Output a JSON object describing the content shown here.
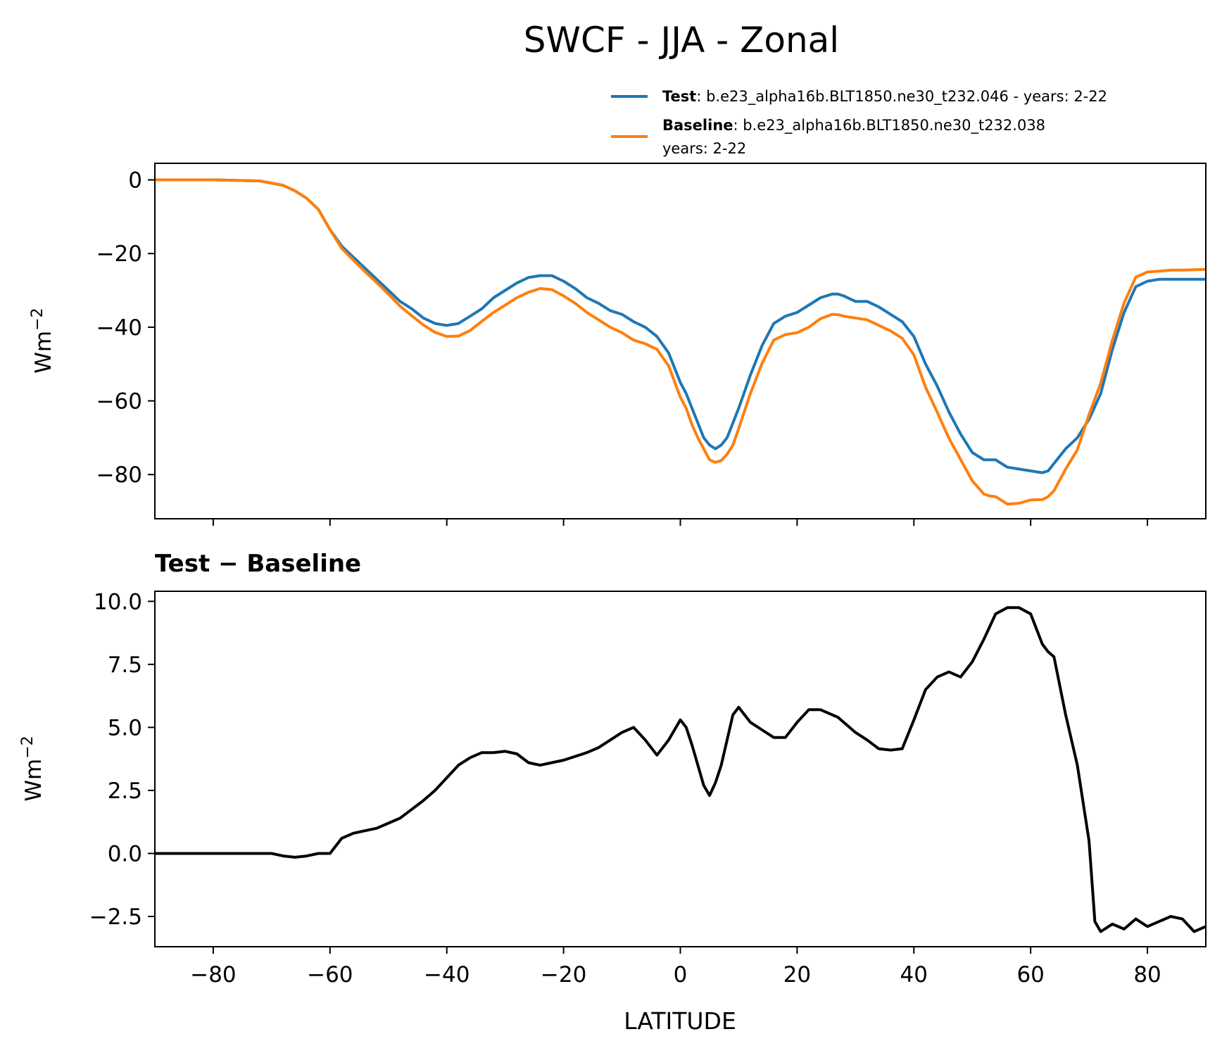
{
  "chart_data": [
    {
      "type": "line",
      "title": "SWCF - JJA - Zonal",
      "xlabel": "",
      "ylabel_base": "Wm",
      "ylabel_sup": "−2",
      "xlim": [
        -90,
        90
      ],
      "ylim": [
        -92,
        4.5
      ],
      "yticks": [
        0,
        -20,
        -40,
        -60,
        -80
      ],
      "ytick_labels": [
        "0",
        "−20",
        "−40",
        "−60",
        "−80"
      ],
      "legend": {
        "position": "upper-right-outside",
        "entries": [
          {
            "bold": "Test",
            "text": ": b.e23_alpha16b.BLT1850.ne30_t232.046 - years: 2-22",
            "text2": "",
            "color": "#1f77b4"
          },
          {
            "bold": "Baseline",
            "text": ": b.e23_alpha16b.BLT1850.ne30_t232.038",
            "text2": "years: 2-22",
            "color": "#ff7f0e"
          }
        ]
      },
      "series": [
        {
          "name": "Test",
          "color": "#1f77b4",
          "x": [
            -90,
            -80,
            -72,
            -68,
            -66,
            -64,
            -62,
            -60,
            -58,
            -56,
            -54,
            -52,
            -50,
            -48,
            -46,
            -44,
            -42,
            -40,
            -38,
            -36,
            -34,
            -32,
            -30,
            -28,
            -26,
            -24,
            -22,
            -20,
            -18,
            -16,
            -14,
            -12,
            -10,
            -8,
            -6,
            -4,
            -2,
            0,
            1,
            2,
            3,
            4,
            5,
            6,
            7,
            8,
            9,
            10,
            12,
            14,
            16,
            18,
            20,
            22,
            24,
            26,
            27,
            28,
            30,
            32,
            34,
            36,
            38,
            40,
            42,
            44,
            46,
            48,
            50,
            52,
            53,
            54,
            56,
            58,
            60,
            62,
            63,
            64,
            66,
            68,
            70,
            72,
            74,
            76,
            78,
            80,
            82,
            84,
            86,
            88,
            90
          ],
          "y": [
            0,
            0,
            -0.3,
            -1.5,
            -3,
            -5,
            -8,
            -13.5,
            -18,
            -21,
            -24,
            -27,
            -30,
            -33,
            -35,
            -37.5,
            -39,
            -39.5,
            -39,
            -37,
            -35,
            -32,
            -30,
            -28,
            -26.5,
            -26,
            -26,
            -27.5,
            -29.5,
            -32,
            -33.5,
            -35.5,
            -36.5,
            -38.5,
            -40,
            -42.5,
            -47,
            -55,
            -58,
            -62,
            -66,
            -70,
            -72,
            -73,
            -72,
            -70,
            -66,
            -62,
            -53,
            -45,
            -39,
            -37,
            -36,
            -34,
            -32,
            -31,
            -31,
            -31.5,
            -33,
            -33,
            -34.5,
            -36.5,
            -38.5,
            -42.5,
            -50,
            -56,
            -63,
            -69,
            -74,
            -76,
            -76,
            -76,
            -78,
            -78.5,
            -79,
            -79.5,
            -79,
            -77,
            -73,
            -70,
            -65,
            -58,
            -46,
            -36,
            -29,
            -27.5,
            -27,
            -27,
            -27,
            -27,
            -27
          ]
        },
        {
          "name": "Baseline",
          "color": "#ff7f0e",
          "x": [
            -90,
            -80,
            -72,
            -68,
            -66,
            -64,
            -62,
            -60,
            -58,
            -56,
            -54,
            -52,
            -50,
            -48,
            -46,
            -44,
            -42,
            -40,
            -38,
            -36,
            -34,
            -32,
            -30,
            -28,
            -26,
            -24,
            -22,
            -20,
            -18,
            -16,
            -14,
            -12,
            -10,
            -8,
            -6,
            -4,
            -2,
            0,
            1,
            2,
            3,
            4,
            5,
            6,
            7,
            8,
            9,
            10,
            12,
            14,
            16,
            18,
            20,
            22,
            24,
            26,
            27,
            28,
            30,
            32,
            34,
            36,
            38,
            40,
            42,
            44,
            46,
            48,
            50,
            52,
            53,
            54,
            56,
            58,
            60,
            62,
            63,
            64,
            66,
            68,
            70,
            72,
            74,
            76,
            78,
            80,
            82,
            84,
            86,
            88,
            90
          ],
          "y": [
            0,
            0,
            -0.3,
            -1.5,
            -3,
            -5,
            -8,
            -13.5,
            -18.6,
            -21.8,
            -24.9,
            -27.9,
            -31,
            -34.3,
            -36.9,
            -39.4,
            -41.4,
            -42.5,
            -42.4,
            -40.9,
            -38.4,
            -36,
            -34,
            -32,
            -30.5,
            -29.5,
            -29.8,
            -31.5,
            -33.5,
            -36,
            -38,
            -40,
            -41.5,
            -43.5,
            -44.5,
            -46,
            -50.5,
            -59,
            -62,
            -66.5,
            -70,
            -73,
            -76,
            -76.7,
            -76.2,
            -74.5,
            -72,
            -67.5,
            -58,
            -49.8,
            -43.5,
            -42,
            -41.5,
            -40,
            -37.7,
            -36.5,
            -36.6,
            -37,
            -37.5,
            -38,
            -39.5,
            -41,
            -43,
            -47.5,
            -56.3,
            -63.1,
            -70.1,
            -75.9,
            -81.7,
            -85.3,
            -85.8,
            -86,
            -88,
            -87.8,
            -86.9,
            -86.8,
            -86,
            -84.4,
            -78.5,
            -73.3,
            -63.7,
            -55.2,
            -43.5,
            -33.4,
            -26.4,
            -25,
            -24.8,
            -24.5,
            -24.5,
            -24.4,
            -24.3
          ]
        }
      ]
    },
    {
      "type": "line",
      "title": "Test − Baseline",
      "xlabel": "LATITUDE",
      "ylabel_base": "Wm",
      "ylabel_sup": "−2",
      "xlim": [
        -90,
        90
      ],
      "ylim": [
        -3.7,
        10.4
      ],
      "xticks": [
        -80,
        -60,
        -40,
        -20,
        0,
        20,
        40,
        60,
        80
      ],
      "xtick_labels": [
        "−80",
        "−60",
        "−40",
        "−20",
        "0",
        "20",
        "40",
        "60",
        "80"
      ],
      "yticks": [
        10,
        7.5,
        5,
        2.5,
        0,
        -2.5
      ],
      "ytick_labels": [
        "10.0",
        "7.5",
        "5.0",
        "2.5",
        "0.0",
        "−2.5"
      ],
      "series": [
        {
          "name": "Test − Baseline",
          "color": "#000000",
          "x": [
            -90,
            -80,
            -70,
            -68,
            -66,
            -64,
            -62,
            -60,
            -58,
            -56,
            -54,
            -52,
            -50,
            -48,
            -46,
            -44,
            -42,
            -40,
            -38,
            -36,
            -34,
            -32,
            -30,
            -28,
            -26,
            -24,
            -22,
            -20,
            -18,
            -16,
            -14,
            -12,
            -10,
            -8,
            -6,
            -4,
            -2,
            0,
            1,
            2,
            3,
            4,
            5,
            6,
            7,
            8,
            9,
            10,
            12,
            14,
            16,
            18,
            20,
            22,
            24,
            26,
            27,
            28,
            30,
            32,
            34,
            36,
            38,
            40,
            42,
            44,
            46,
            48,
            50,
            52,
            53,
            54,
            56,
            58,
            60,
            62,
            63,
            64,
            66,
            68,
            70,
            71,
            72,
            74,
            76,
            78,
            80,
            82,
            84,
            86,
            88,
            90
          ],
          "y": [
            0,
            0,
            0,
            -0.1,
            -0.15,
            -0.1,
            0,
            0,
            0.6,
            0.8,
            0.9,
            1.0,
            1.2,
            1.4,
            1.75,
            2.1,
            2.5,
            3.0,
            3.5,
            3.8,
            4.0,
            4.0,
            4.05,
            3.95,
            3.6,
            3.5,
            3.6,
            3.7,
            3.85,
            4.0,
            4.2,
            4.5,
            4.8,
            5.0,
            4.5,
            3.9,
            4.5,
            5.3,
            5.0,
            4.3,
            3.5,
            2.7,
            2.3,
            2.8,
            3.5,
            4.5,
            5.5,
            5.8,
            5.2,
            4.9,
            4.6,
            4.6,
            5.2,
            5.7,
            5.7,
            5.5,
            5.4,
            5.2,
            4.8,
            4.5,
            4.15,
            4.1,
            4.15,
            5.3,
            6.5,
            7.0,
            7.2,
            7.0,
            7.6,
            8.5,
            9.0,
            9.5,
            9.75,
            9.75,
            9.5,
            8.3,
            8.0,
            7.8,
            5.5,
            3.5,
            0.5,
            -2.7,
            -3.1,
            -2.8,
            -3.0,
            -2.6,
            -2.9,
            -2.7,
            -2.5,
            -2.6,
            -3.1,
            -2.9
          ]
        }
      ]
    }
  ]
}
